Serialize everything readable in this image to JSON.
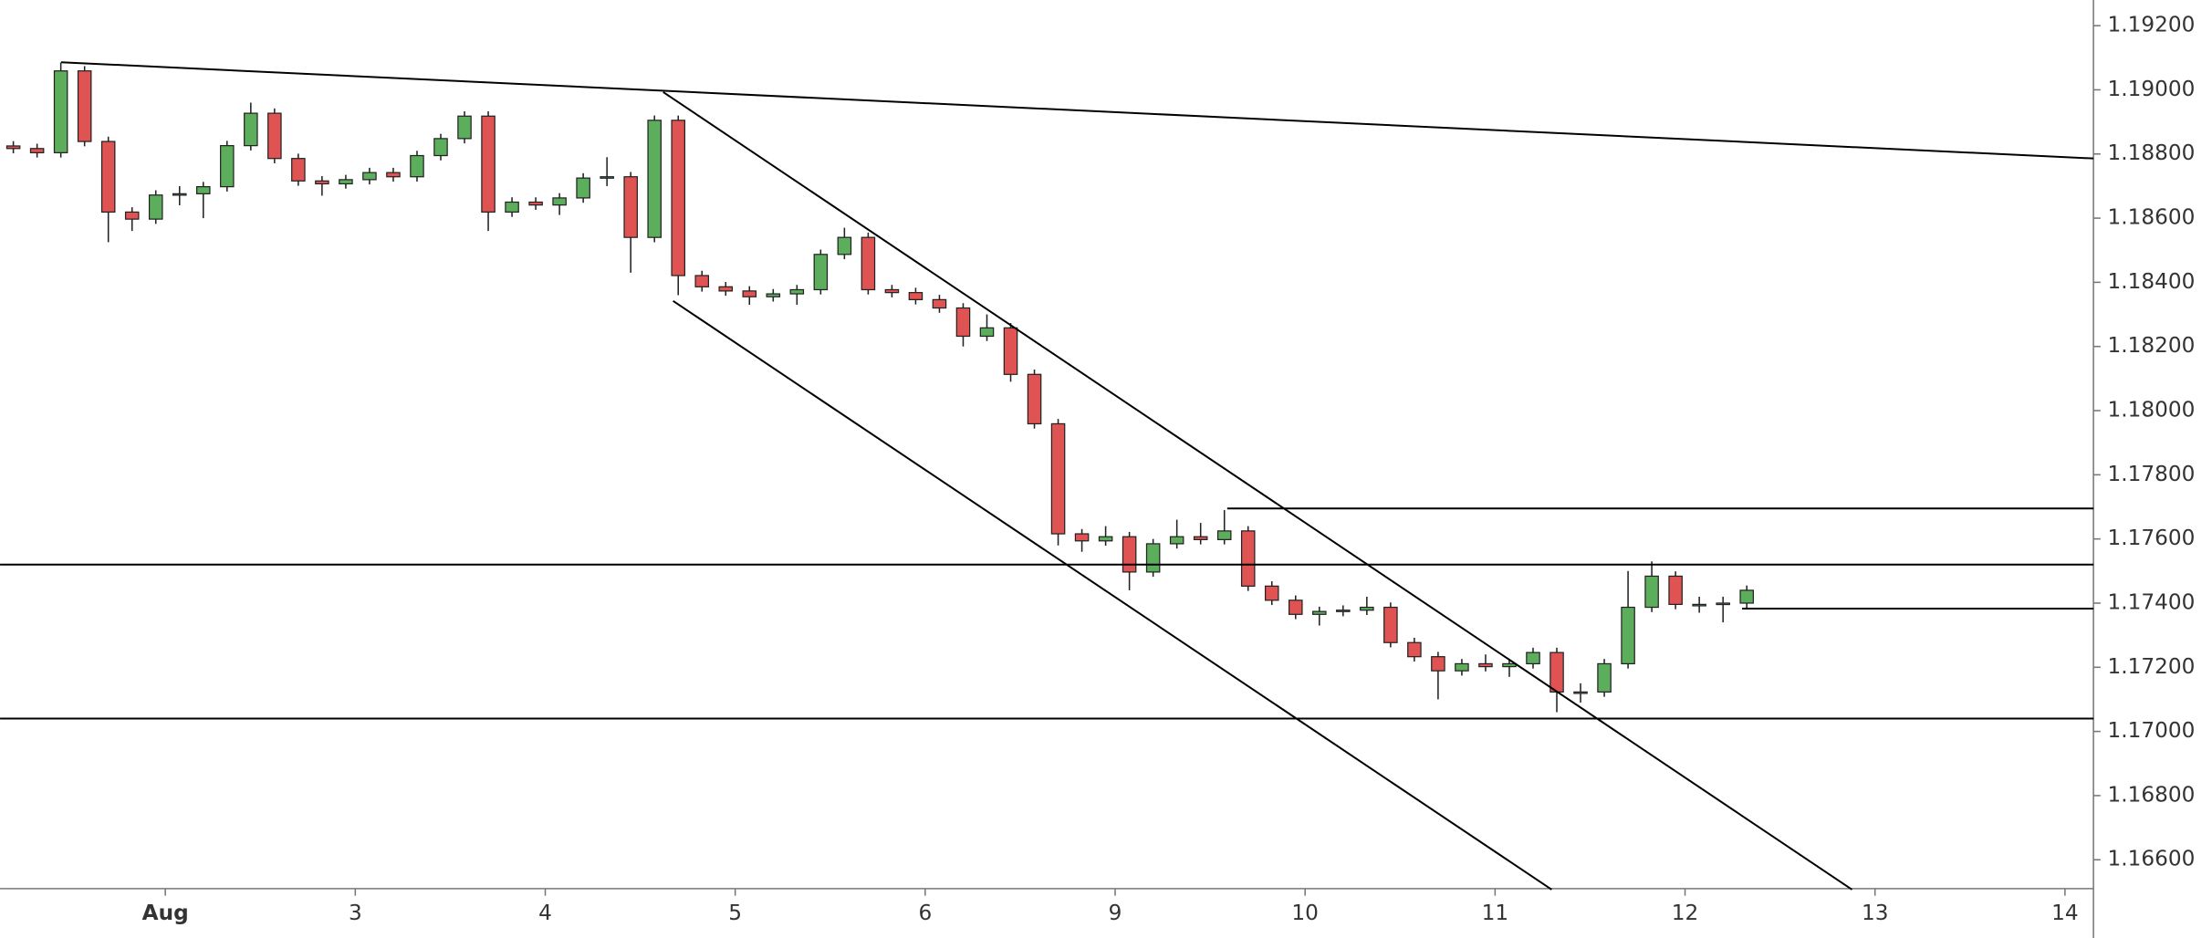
{
  "chart_data": {
    "type": "candlestick",
    "up_color": "#5cad5c",
    "down_color": "#e05353",
    "outline_color": "#222222",
    "line_color": "#000000",
    "xlim": [
      -0.87,
      10.15
    ],
    "ylim": [
      1.1651,
      1.1928
    ],
    "xticks": [
      {
        "value": 0,
        "label": "Aug"
      },
      {
        "value": 1,
        "label": "3"
      },
      {
        "value": 2,
        "label": "4"
      },
      {
        "value": 3,
        "label": "5"
      },
      {
        "value": 4,
        "label": "6"
      },
      {
        "value": 5,
        "label": "9"
      },
      {
        "value": 6,
        "label": "10"
      },
      {
        "value": 7,
        "label": "11"
      },
      {
        "value": 8,
        "label": "12"
      },
      {
        "value": 9,
        "label": "13"
      },
      {
        "value": 10,
        "label": "14"
      }
    ],
    "yticks": [
      {
        "value": 1.166,
        "label": "1.16600"
      },
      {
        "value": 1.168,
        "label": "1.16800"
      },
      {
        "value": 1.17,
        "label": "1.17000"
      },
      {
        "value": 1.172,
        "label": "1.17200"
      },
      {
        "value": 1.174,
        "label": "1.17400"
      },
      {
        "value": 1.176,
        "label": "1.17600"
      },
      {
        "value": 1.178,
        "label": "1.17800"
      },
      {
        "value": 1.18,
        "label": "1.18000"
      },
      {
        "value": 1.182,
        "label": "1.18200"
      },
      {
        "value": 1.184,
        "label": "1.18400"
      },
      {
        "value": 1.186,
        "label": "1.18600"
      },
      {
        "value": 1.188,
        "label": "1.18800"
      },
      {
        "value": 1.19,
        "label": "1.19000"
      },
      {
        "value": 1.192,
        "label": "1.19200"
      }
    ],
    "x": [
      -0.8,
      -0.675,
      -0.55,
      -0.425,
      -0.3,
      -0.175,
      -0.05,
      0.075,
      0.2,
      0.325,
      0.45,
      0.575,
      0.7,
      0.825,
      0.95,
      1.075,
      1.2,
      1.325,
      1.45,
      1.575,
      1.7,
      1.825,
      1.95,
      2.075,
      2.2,
      2.325,
      2.45,
      2.575,
      2.7,
      2.825,
      2.95,
      3.075,
      3.2,
      3.325,
      3.45,
      3.575,
      3.7,
      3.825,
      3.95,
      4.075,
      4.2,
      4.325,
      4.45,
      4.575,
      4.7,
      4.825,
      4.95,
      5.075,
      5.2,
      5.325,
      5.45,
      5.575,
      5.7,
      5.825,
      5.95,
      6.075,
      6.2,
      6.325,
      6.45,
      6.575,
      6.7,
      6.825,
      6.95,
      7.075,
      7.2,
      7.325,
      7.45,
      7.575,
      7.7,
      7.825,
      7.95,
      8.075,
      8.2,
      8.325
    ],
    "open": [
      1.18825,
      1.18817,
      1.18804,
      1.19059,
      1.18839,
      1.18619,
      1.18597,
      1.18672,
      1.18676,
      1.18698,
      1.18826,
      1.18927,
      1.18786,
      1.18716,
      1.18707,
      1.1872,
      1.18742,
      1.18729,
      1.18795,
      1.18848,
      1.18918,
      1.18619,
      1.1865,
      1.18641,
      1.18663,
      1.18725,
      1.18729,
      1.1854,
      1.18905,
      1.18421,
      1.18386,
      1.18373,
      1.18355,
      1.18364,
      1.18377,
      1.18487,
      1.1854,
      1.18377,
      1.18368,
      1.18346,
      1.1832,
      1.18232,
      1.18258,
      1.18113,
      1.17959,
      1.17616,
      1.17594,
      1.17607,
      1.17497,
      1.17585,
      1.17607,
      1.17598,
      1.17625,
      1.17453,
      1.17409,
      1.17365,
      1.17374,
      1.17378,
      1.17387,
      1.17277,
      1.17233,
      1.17189,
      1.17211,
      1.17202,
      1.17211,
      1.17246,
      1.17123,
      1.17123,
      1.17211,
      1.17387,
      1.17484,
      1.17396,
      1.17396,
      1.174
    ],
    "high": [
      1.1884,
      1.18832,
      1.19085,
      1.19074,
      1.18854,
      1.18634,
      1.18687,
      1.187,
      1.18713,
      1.18841,
      1.1896,
      1.18942,
      1.18801,
      1.18731,
      1.18735,
      1.18757,
      1.18757,
      1.1881,
      1.18863,
      1.18933,
      1.18933,
      1.18665,
      1.18665,
      1.18678,
      1.1874,
      1.1879,
      1.18744,
      1.1892,
      1.1892,
      1.18436,
      1.18401,
      1.18388,
      1.18379,
      1.18392,
      1.18502,
      1.1857,
      1.18555,
      1.18392,
      1.18383,
      1.18361,
      1.18335,
      1.183,
      1.18273,
      1.18128,
      1.17974,
      1.17631,
      1.1764,
      1.17622,
      1.176,
      1.1766,
      1.1765,
      1.1769,
      1.1764,
      1.17468,
      1.17424,
      1.17389,
      1.17393,
      1.1742,
      1.17402,
      1.17292,
      1.17248,
      1.17226,
      1.1724,
      1.17226,
      1.17261,
      1.17261,
      1.1715,
      1.17226,
      1.175,
      1.1753,
      1.17499,
      1.1742,
      1.1742,
      1.17455
    ],
    "low": [
      1.18802,
      1.18789,
      1.18789,
      1.18824,
      1.18525,
      1.1856,
      1.18582,
      1.1864,
      1.186,
      1.18683,
      1.18811,
      1.18771,
      1.18701,
      1.1867,
      1.18692,
      1.18705,
      1.18714,
      1.18714,
      1.1878,
      1.18833,
      1.1856,
      1.18604,
      1.18626,
      1.1861,
      1.18648,
      1.187,
      1.1843,
      1.18525,
      1.1836,
      1.18371,
      1.18358,
      1.1833,
      1.1834,
      1.1833,
      1.18362,
      1.18472,
      1.18362,
      1.18353,
      1.18331,
      1.18305,
      1.182,
      1.18217,
      1.1809,
      1.17944,
      1.1758,
      1.1756,
      1.17579,
      1.1744,
      1.17482,
      1.1757,
      1.17583,
      1.17583,
      1.17438,
      1.17394,
      1.1735,
      1.1733,
      1.17359,
      1.17363,
      1.17262,
      1.17218,
      1.171,
      1.17174,
      1.17187,
      1.1717,
      1.17196,
      1.1706,
      1.1709,
      1.17108,
      1.17196,
      1.17372,
      1.17381,
      1.1737,
      1.1734,
      1.17385
    ],
    "close": [
      1.18817,
      1.18804,
      1.19059,
      1.18839,
      1.18619,
      1.18597,
      1.18672,
      1.18676,
      1.18698,
      1.18826,
      1.18927,
      1.18786,
      1.18716,
      1.18707,
      1.1872,
      1.18742,
      1.18729,
      1.18795,
      1.18848,
      1.18918,
      1.18619,
      1.1865,
      1.18641,
      1.18663,
      1.18725,
      1.18729,
      1.1854,
      1.18905,
      1.18421,
      1.18386,
      1.18373,
      1.18355,
      1.18364,
      1.18377,
      1.18487,
      1.1854,
      1.18377,
      1.18368,
      1.18346,
      1.1832,
      1.18232,
      1.18258,
      1.18113,
      1.17959,
      1.17616,
      1.17594,
      1.17607,
      1.17497,
      1.17585,
      1.17607,
      1.17598,
      1.17625,
      1.17453,
      1.17409,
      1.17365,
      1.17374,
      1.17378,
      1.17387,
      1.17277,
      1.17233,
      1.17189,
      1.17211,
      1.17202,
      1.17211,
      1.17246,
      1.17123,
      1.17123,
      1.17211,
      1.17387,
      1.17484,
      1.17396,
      1.17396,
      1.174,
      1.1744
    ],
    "lines": [
      {
        "x": [
          -0.549,
          10.15
        ],
        "y": [
          1.19086,
          1.18786
        ]
      },
      {
        "x": [
          2.621,
          8.879
        ],
        "y": [
          1.18993,
          1.16507
        ]
      },
      {
        "x": [
          2.673,
          7.298
        ],
        "y": [
          1.18342,
          1.16507
        ]
      },
      {
        "x": [
          -0.87,
          10.15
        ],
        "y": [
          1.1752,
          1.1752
        ]
      },
      {
        "x": [
          -0.87,
          10.15
        ],
        "y": [
          1.1704,
          1.1704
        ]
      },
      {
        "x": [
          5.59,
          10.15
        ],
        "y": [
          1.17695,
          1.17695
        ]
      },
      {
        "x": [
          8.3,
          10.15
        ],
        "y": [
          1.17383,
          1.17383
        ]
      }
    ]
  }
}
